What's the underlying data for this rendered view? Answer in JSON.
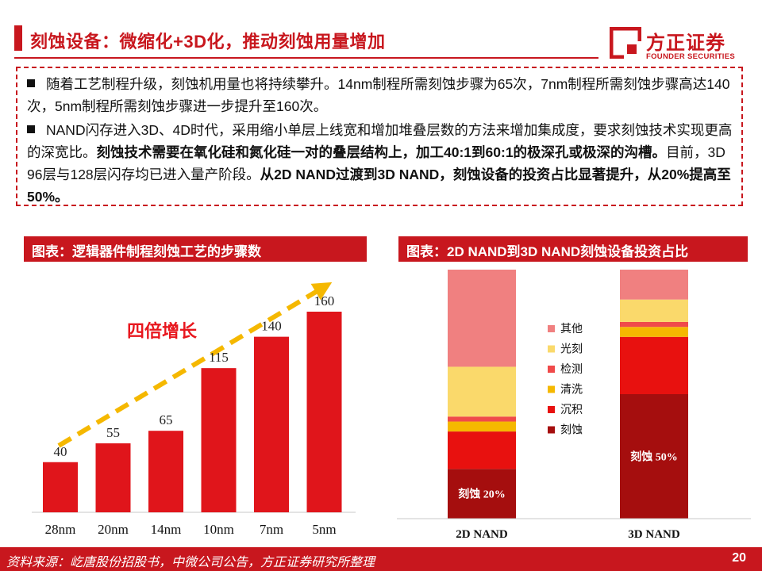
{
  "header": {
    "title": "刻蚀设备：微缩化+3D化，推动刻蚀用量增加",
    "logo_cn": "方正证券",
    "logo_en": "FOUNDER SECURITIES"
  },
  "bullets": [
    {
      "segments": [
        {
          "text": "随着工艺制程升级，刻蚀机用量也将持续攀升。14nm制程所需刻蚀步骤为65次，7nm制程所需刻蚀步骤高达140次，5nm制程所需刻蚀步骤进一步提升至160次。",
          "bold": false
        }
      ]
    },
    {
      "segments": [
        {
          "text": "NAND闪存进入3D、4D时代，采用缩小单层上线宽和增加堆叠层数的方法来增加集成度，要求刻蚀技术实现更高的深宽比。",
          "bold": false
        },
        {
          "text": "刻蚀技术需要在氧化硅和氮化硅一对的叠层结构上，加工40:1到60:1的极深孔或极深的沟槽。",
          "bold": true
        },
        {
          "text": "目前，3D 96层与128层闪存均已进入量产阶段。",
          "bold": false
        },
        {
          "text": "从2D NAND过渡到3D NAND，刻蚀设备的投资占比显著提升，从20%提高至50%。",
          "bold": true
        }
      ]
    }
  ],
  "left_chart": {
    "title": "图表：逻辑器件制程刻蚀工艺的步骤数",
    "annotation": "四倍增长"
  },
  "right_chart": {
    "title": "图表：2D NAND到3D NAND刻蚀设备投资占比"
  },
  "footer": {
    "source": "资料来源：屹唐股份招股书，中微公司公告，方正证券研究所整理",
    "page": "20"
  },
  "colors": {
    "brand_red": "#c8171e",
    "bar_red": "#e0151b",
    "arrow_yellow": "#f5b800",
    "other": "#f08080",
    "lithography": "#fad96b",
    "inspection": "#f04a4a",
    "cleaning": "#f5b800",
    "deposition": "#e8110f",
    "etching": "#a50e0e"
  },
  "chart_data": [
    {
      "type": "bar",
      "categories": [
        "28nm",
        "20nm",
        "14nm",
        "10nm",
        "7nm",
        "5nm"
      ],
      "values": [
        40,
        55,
        65,
        115,
        140,
        160
      ],
      "title": "图表：逻辑器件制程刻蚀工艺的步骤数",
      "xlabel": "",
      "ylabel": "",
      "ylim": [
        0,
        160
      ],
      "data_labels": true,
      "grid": false,
      "legend": "none",
      "annotation": "四倍增长"
    },
    {
      "type": "bar",
      "stacked": true,
      "percent": true,
      "categories": [
        "2D NAND",
        "3D NAND"
      ],
      "series": [
        {
          "name": "刻蚀",
          "values": [
            20,
            50
          ],
          "color": "#a50e0e"
        },
        {
          "name": "沉积",
          "values": [
            15,
            23
          ],
          "color": "#e8110f"
        },
        {
          "name": "清洗",
          "values": [
            4,
            4
          ],
          "color": "#f5b800"
        },
        {
          "name": "检测",
          "values": [
            2,
            2
          ],
          "color": "#f04a4a"
        },
        {
          "name": "光刻",
          "values": [
            20,
            9
          ],
          "color": "#fad96b"
        },
        {
          "name": "其他",
          "values": [
            39,
            12
          ],
          "color": "#f08080"
        }
      ],
      "segment_labels": [
        {
          "category": "2D NAND",
          "series": "刻蚀",
          "text": "刻蚀 20%"
        },
        {
          "category": "3D NAND",
          "series": "刻蚀",
          "text": "刻蚀 50%"
        }
      ],
      "title": "图表：2D NAND到3D NAND刻蚀设备投资占比",
      "ylim": [
        0,
        100
      ],
      "grid": false,
      "legend": "center",
      "legend_order": [
        "其他",
        "光刻",
        "检测",
        "清洗",
        "沉积",
        "刻蚀"
      ]
    }
  ]
}
